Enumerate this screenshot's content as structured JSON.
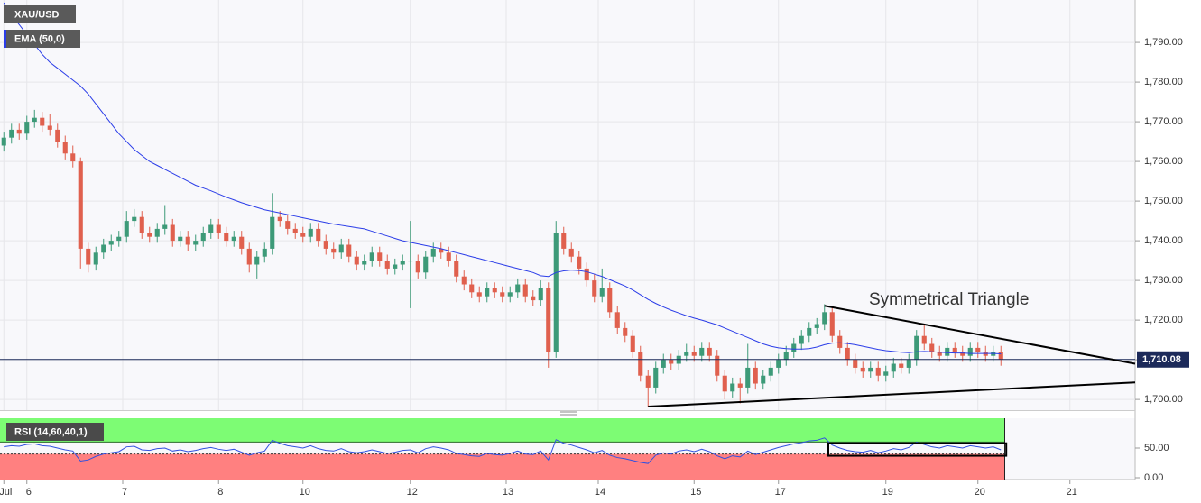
{
  "chart_data": {
    "type": "candlestick",
    "symbol": "XAU/USD",
    "up_color": "#3d9a78",
    "down_color": "#e0604e",
    "ohlc": [
      [
        1764,
        1767.5,
        1762.5,
        1766
      ],
      [
        1766,
        1769.5,
        1764.5,
        1768
      ],
      [
        1768,
        1769.5,
        1765.5,
        1767
      ],
      [
        1767,
        1771.5,
        1765.5,
        1770
      ],
      [
        1770,
        1773,
        1768.5,
        1771
      ],
      [
        1771,
        1772.5,
        1767.5,
        1769
      ],
      [
        1769,
        1772,
        1766.5,
        1768
      ],
      [
        1768,
        1769.5,
        1763.5,
        1765
      ],
      [
        1765,
        1766.5,
        1760.5,
        1762
      ],
      [
        1762,
        1764,
        1758.5,
        1760
      ],
      [
        1760,
        1761,
        1733,
        1738
      ],
      [
        1738,
        1739.5,
        1732,
        1734
      ],
      [
        1734,
        1738.5,
        1732.5,
        1737
      ],
      [
        1737,
        1740.5,
        1735.5,
        1739
      ],
      [
        1739,
        1741.5,
        1737.5,
        1740
      ],
      [
        1740,
        1742.5,
        1738.5,
        1741
      ],
      [
        1741,
        1747.5,
        1739.5,
        1745
      ],
      [
        1745,
        1748,
        1743.5,
        1746
      ],
      [
        1746,
        1747.5,
        1740.5,
        1742
      ],
      [
        1742,
        1743.5,
        1739.5,
        1741
      ],
      [
        1741,
        1744.5,
        1739.5,
        1743
      ],
      [
        1743,
        1749,
        1741.5,
        1744
      ],
      [
        1744,
        1745.5,
        1738.5,
        1740
      ],
      [
        1740,
        1742.5,
        1738.5,
        1741
      ],
      [
        1741,
        1742.5,
        1737.5,
        1739
      ],
      [
        1739,
        1741.5,
        1737.5,
        1740
      ],
      [
        1740,
        1743.5,
        1738.5,
        1742
      ],
      [
        1742,
        1745.5,
        1740.5,
        1744
      ],
      [
        1744,
        1745.5,
        1740.5,
        1742
      ],
      [
        1742,
        1743.5,
        1738.5,
        1740
      ],
      [
        1740,
        1742.5,
        1738.5,
        1741
      ],
      [
        1741,
        1742.5,
        1736.5,
        1738
      ],
      [
        1738,
        1739.5,
        1732,
        1734
      ],
      [
        1734,
        1737.5,
        1730.5,
        1736
      ],
      [
        1736,
        1739.5,
        1734.5,
        1738
      ],
      [
        1738,
        1752,
        1736.5,
        1746
      ],
      [
        1746,
        1747.5,
        1743.5,
        1745
      ],
      [
        1745,
        1746.5,
        1741.5,
        1743
      ],
      [
        1743,
        1744.5,
        1740.5,
        1742
      ],
      [
        1742,
        1743.5,
        1739.5,
        1741
      ],
      [
        1741,
        1744.5,
        1739.5,
        1743
      ],
      [
        1743,
        1744.5,
        1738.5,
        1740
      ],
      [
        1740,
        1741.5,
        1736.5,
        1738
      ],
      [
        1738,
        1739.5,
        1735.5,
        1737
      ],
      [
        1737,
        1740.5,
        1735.5,
        1739
      ],
      [
        1739,
        1740.5,
        1734.5,
        1736
      ],
      [
        1736,
        1737.5,
        1732.5,
        1734
      ],
      [
        1734,
        1736.5,
        1732.5,
        1735
      ],
      [
        1735,
        1738.5,
        1733.5,
        1737
      ],
      [
        1737,
        1738.5,
        1733.5,
        1735
      ],
      [
        1735,
        1736.5,
        1731.5,
        1733
      ],
      [
        1733,
        1735.5,
        1731.5,
        1734
      ],
      [
        1734,
        1736.5,
        1732.5,
        1735
      ],
      [
        1735,
        1745,
        1723,
        1735
      ],
      [
        1735,
        1736.5,
        1730.5,
        1732
      ],
      [
        1732,
        1737.5,
        1730.5,
        1736
      ],
      [
        1736,
        1739.5,
        1734.5,
        1738
      ],
      [
        1738,
        1739.5,
        1735.5,
        1737
      ],
      [
        1737,
        1738.5,
        1733.5,
        1735
      ],
      [
        1735,
        1736.5,
        1729.5,
        1731
      ],
      [
        1731,
        1732.5,
        1727.5,
        1729
      ],
      [
        1729,
        1730.5,
        1725.5,
        1727
      ],
      [
        1727,
        1728.5,
        1724.5,
        1726
      ],
      [
        1726,
        1729.5,
        1724.5,
        1728
      ],
      [
        1728,
        1729.5,
        1725.5,
        1727
      ],
      [
        1727,
        1728.5,
        1724.5,
        1726
      ],
      [
        1726,
        1728.5,
        1724.5,
        1727
      ],
      [
        1727,
        1730.5,
        1725.5,
        1729
      ],
      [
        1729,
        1730.5,
        1724.5,
        1726
      ],
      [
        1726,
        1727.5,
        1723.5,
        1725
      ],
      [
        1725,
        1730,
        1723.5,
        1728
      ],
      [
        1728,
        1729.5,
        1708,
        1712
      ],
      [
        1712,
        1745,
        1710.5,
        1742
      ],
      [
        1742,
        1743.5,
        1736.5,
        1738
      ],
      [
        1738,
        1739.5,
        1734.5,
        1736
      ],
      [
        1736,
        1737.5,
        1731.5,
        1733
      ],
      [
        1733,
        1734.5,
        1728.5,
        1730
      ],
      [
        1730,
        1731.5,
        1724.5,
        1726
      ],
      [
        1726,
        1733,
        1724.5,
        1728
      ],
      [
        1728,
        1729.5,
        1720.5,
        1722
      ],
      [
        1722,
        1723.5,
        1716.5,
        1718
      ],
      [
        1718,
        1719.5,
        1714.5,
        1716
      ],
      [
        1716,
        1717.5,
        1710.5,
        1712
      ],
      [
        1712,
        1713.5,
        1704.5,
        1706
      ],
      [
        1706,
        1707.5,
        1698,
        1703
      ],
      [
        1703,
        1709.5,
        1701.5,
        1708
      ],
      [
        1708,
        1711.5,
        1706.5,
        1710
      ],
      [
        1710,
        1711.5,
        1707.5,
        1709
      ],
      [
        1709,
        1712.5,
        1707.5,
        1711
      ],
      [
        1711,
        1714,
        1709.5,
        1712
      ],
      [
        1712,
        1713.5,
        1709.5,
        1711
      ],
      [
        1711,
        1714.5,
        1709.5,
        1713
      ],
      [
        1713,
        1714.5,
        1709.5,
        1711
      ],
      [
        1711,
        1712.5,
        1704.5,
        1706
      ],
      [
        1706,
        1707.5,
        1700,
        1702
      ],
      [
        1702,
        1705.5,
        1700.5,
        1704
      ],
      [
        1704,
        1705.5,
        1699,
        1703
      ],
      [
        1703,
        1714,
        1701.5,
        1708
      ],
      [
        1708,
        1709.5,
        1702.5,
        1704
      ],
      [
        1704,
        1707.5,
        1702.5,
        1706
      ],
      [
        1706,
        1709.5,
        1704.5,
        1708
      ],
      [
        1708,
        1711.5,
        1706.5,
        1710
      ],
      [
        1710,
        1713.5,
        1708.5,
        1712
      ],
      [
        1712,
        1715.5,
        1710.5,
        1714
      ],
      [
        1714,
        1717.5,
        1712.5,
        1716
      ],
      [
        1716,
        1719.5,
        1714.5,
        1718
      ],
      [
        1718,
        1720.5,
        1716.5,
        1719
      ],
      [
        1719,
        1724,
        1717.5,
        1722
      ],
      [
        1722,
        1723.5,
        1714.5,
        1716
      ],
      [
        1716,
        1717.5,
        1711.5,
        1713
      ],
      [
        1713,
        1714.5,
        1708.5,
        1710
      ],
      [
        1710,
        1711.5,
        1706.5,
        1708
      ],
      [
        1708,
        1709.5,
        1705.5,
        1707
      ],
      [
        1707,
        1709.5,
        1705.5,
        1708
      ],
      [
        1708,
        1709.5,
        1704.5,
        1706
      ],
      [
        1706,
        1708.5,
        1704.5,
        1707
      ],
      [
        1707,
        1710.5,
        1705.5,
        1709
      ],
      [
        1709,
        1710.5,
        1706.5,
        1708
      ],
      [
        1708,
        1711.5,
        1706.5,
        1710
      ],
      [
        1710,
        1717.5,
        1708.5,
        1716
      ],
      [
        1716,
        1719,
        1712.5,
        1714
      ],
      [
        1714,
        1715.5,
        1710.5,
        1712
      ],
      [
        1712,
        1713.5,
        1709.5,
        1711
      ],
      [
        1711,
        1714.5,
        1709.5,
        1713
      ],
      [
        1713,
        1714.5,
        1710.5,
        1712
      ],
      [
        1712,
        1713.5,
        1709.5,
        1711
      ],
      [
        1711,
        1714.5,
        1709.5,
        1713
      ],
      [
        1713,
        1714.5,
        1710.5,
        1712
      ],
      [
        1712,
        1713.5,
        1709.5,
        1711
      ],
      [
        1711,
        1713.5,
        1709.5,
        1712
      ],
      [
        1712,
        1713.5,
        1708.5,
        1710.08
      ]
    ],
    "ema": {
      "name": "EMA (50,0)",
      "color": "#2b3de8",
      "values": [
        1800,
        1797,
        1794.5,
        1792,
        1789.5,
        1787,
        1785,
        1783.5,
        1782,
        1780.5,
        1779,
        1777,
        1774.5,
        1772,
        1769.5,
        1767,
        1765,
        1763,
        1761.5,
        1760,
        1759,
        1758,
        1757,
        1756,
        1755,
        1754,
        1753.3,
        1752.6,
        1751.8,
        1751,
        1750.3,
        1749.6,
        1749,
        1748.4,
        1747.8,
        1747.4,
        1747,
        1746.6,
        1746.2,
        1745.8,
        1745.4,
        1745,
        1744.6,
        1744.2,
        1743.9,
        1743.6,
        1743.3,
        1743,
        1742.4,
        1741.8,
        1741.2,
        1740.6,
        1740,
        1739.6,
        1739.2,
        1738.8,
        1738.4,
        1738,
        1737.5,
        1737,
        1736.5,
        1736,
        1735.5,
        1735,
        1734.5,
        1734,
        1733.5,
        1733,
        1732.5,
        1732,
        1731.2,
        1731,
        1732,
        1732.4,
        1732.6,
        1732.5,
        1732.2,
        1731.6,
        1731,
        1730.2,
        1729.4,
        1728.6,
        1727.6,
        1726.4,
        1725.2,
        1724.2,
        1723.3,
        1722.5,
        1721.8,
        1721.1,
        1720.5,
        1720,
        1719.4,
        1718.8,
        1718,
        1717.2,
        1716.4,
        1715.6,
        1714.8,
        1714,
        1713.4,
        1713,
        1712.8,
        1712.7,
        1712.7,
        1712.8,
        1713.2,
        1713.8,
        1714.2,
        1714.3,
        1714.1,
        1713.8,
        1713.4,
        1713,
        1712.6,
        1712.3,
        1712.1,
        1711.9,
        1711.8,
        1712,
        1712.1,
        1712,
        1711.9,
        1711.8,
        1711.7,
        1711.7,
        1711.6,
        1711.6,
        1711.6,
        1711.6,
        1711.5
      ]
    },
    "xlim": [
      -0.5,
      147.5
    ],
    "xticks": [
      {
        "value": 0,
        "label": "Jul"
      },
      {
        "value": 3,
        "label": "6"
      },
      {
        "value": 15.5,
        "label": "7"
      },
      {
        "value": 28,
        "label": "8"
      },
      {
        "value": 39,
        "label": "10"
      },
      {
        "value": 53,
        "label": "12"
      },
      {
        "value": 65.5,
        "label": "13"
      },
      {
        "value": 77.5,
        "label": "14"
      },
      {
        "value": 90,
        "label": "15"
      },
      {
        "value": 101,
        "label": "17"
      },
      {
        "value": 115,
        "label": "19"
      },
      {
        "value": 127,
        "label": "20"
      },
      {
        "value": 139,
        "label": "21"
      }
    ],
    "ylim": [
      1697.3,
      1800.7
    ],
    "yticks": [
      {
        "value": 1700,
        "label": "1,700.00"
      },
      {
        "value": 1710,
        "label": "1,710.00"
      },
      {
        "value": 1720,
        "label": "1,720.00"
      },
      {
        "value": 1730,
        "label": "1,730.00"
      },
      {
        "value": 1740,
        "label": "1,740.00"
      },
      {
        "value": 1750,
        "label": "1,750.00"
      },
      {
        "value": 1760,
        "label": "1,760.00"
      },
      {
        "value": 1770,
        "label": "1,770.00"
      },
      {
        "value": 1780,
        "label": "1,780.00"
      },
      {
        "value": 1790,
        "label": "1,790.00"
      }
    ],
    "grid": true,
    "last_price": {
      "value": 1710.08,
      "label": "1,710.08",
      "color": "#1c2a5a"
    },
    "annotation": {
      "text": "Symmetrical Triangle",
      "color": "#000000",
      "lines": [
        {
          "x": [
            107,
            147.5
          ],
          "y": [
            1723.6,
            1709
          ]
        },
        {
          "x": [
            84,
            147.5
          ],
          "y": [
            1698.2,
            1704.3
          ]
        }
      ]
    },
    "rsi": {
      "name": "RSI (14,60,40,1)",
      "color": "#3050e0",
      "upper": 60,
      "lower": 40,
      "upper_color": "#7dfc74",
      "lower_color": "#ff8080",
      "values": [
        52,
        54,
        53,
        56,
        57,
        54,
        53,
        50,
        47,
        45,
        28,
        30,
        36,
        40,
        42,
        44,
        52,
        53,
        47,
        46,
        49,
        50,
        45,
        47,
        44,
        46,
        49,
        51,
        48,
        46,
        48,
        43,
        38,
        42,
        45,
        63,
        58,
        54,
        52,
        50,
        54,
        49,
        46,
        45,
        49,
        44,
        42,
        44,
        47,
        44,
        41,
        43,
        46,
        47,
        42,
        49,
        52,
        50,
        47,
        41,
        39,
        37,
        36,
        41,
        39,
        38,
        41,
        45,
        40,
        39,
        45,
        30,
        64,
        58,
        55,
        51,
        47,
        42,
        46,
        38,
        34,
        32,
        29,
        26,
        24,
        38,
        42,
        40,
        45,
        47,
        44,
        48,
        44,
        37,
        32,
        37,
        35,
        45,
        39,
        43,
        47,
        51,
        54,
        57,
        59,
        62,
        63,
        67,
        55,
        50,
        46,
        44,
        43,
        46,
        42,
        45,
        49,
        47,
        51,
        60,
        56,
        52,
        50,
        54,
        52,
        50,
        54,
        52,
        50,
        52,
        47
      ],
      "ylim": [
        0,
        100
      ],
      "yticks": [
        {
          "value": 0,
          "label": "0.00"
        },
        {
          "value": 50,
          "label": "50.00"
        }
      ],
      "box": {
        "x": [
          107.5,
          130.7
        ],
        "y": [
          37,
          58
        ]
      }
    }
  }
}
